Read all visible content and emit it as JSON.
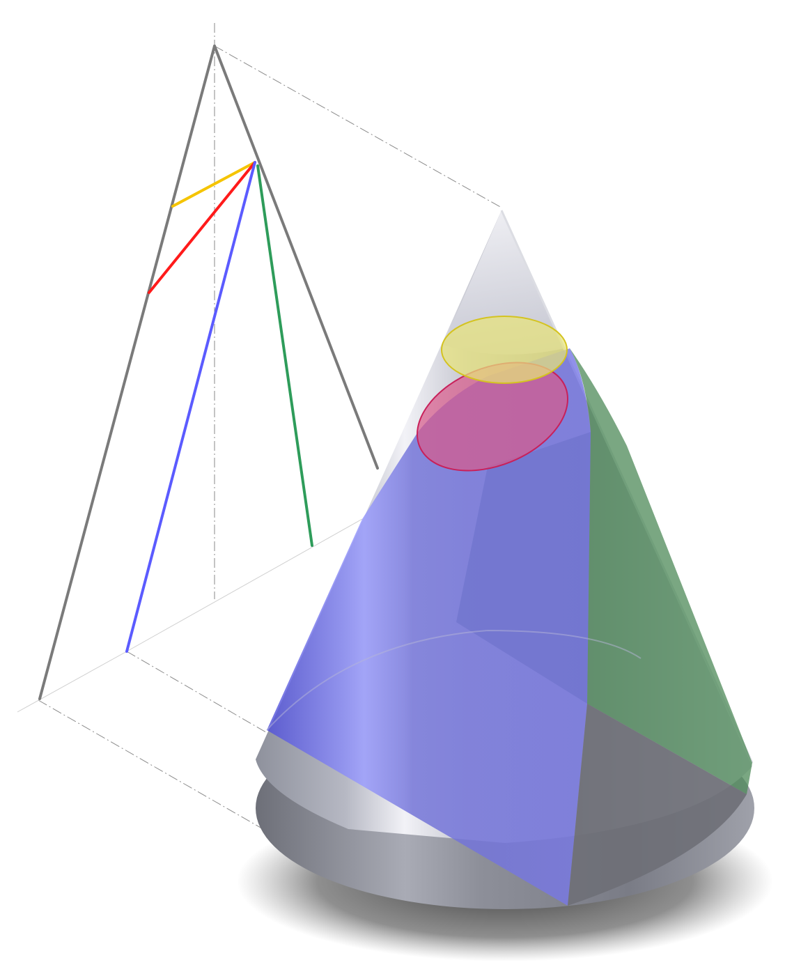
{
  "figure": {
    "kind": "conic-sections-illustration",
    "background": "#ffffff",
    "colors": {
      "generator_edge": "#7a7a7a",
      "construction_line": "#8a8a8a",
      "circle_section": "#f5c400",
      "ellipse_section": "#ff1a1a",
      "parabola_section": "#2e9c5a",
      "hyperbola_section": "#5b5bff",
      "cone_body": "#b9bcc8",
      "cone_shadow": "#3a3a3a"
    },
    "sections": [
      {
        "name": "circle",
        "color": "#f5c400"
      },
      {
        "name": "ellipse",
        "color": "#ff1a1a"
      },
      {
        "name": "parabola",
        "color": "#2e9c5a"
      },
      {
        "name": "hyperbola",
        "color": "#5b5bff"
      }
    ]
  }
}
